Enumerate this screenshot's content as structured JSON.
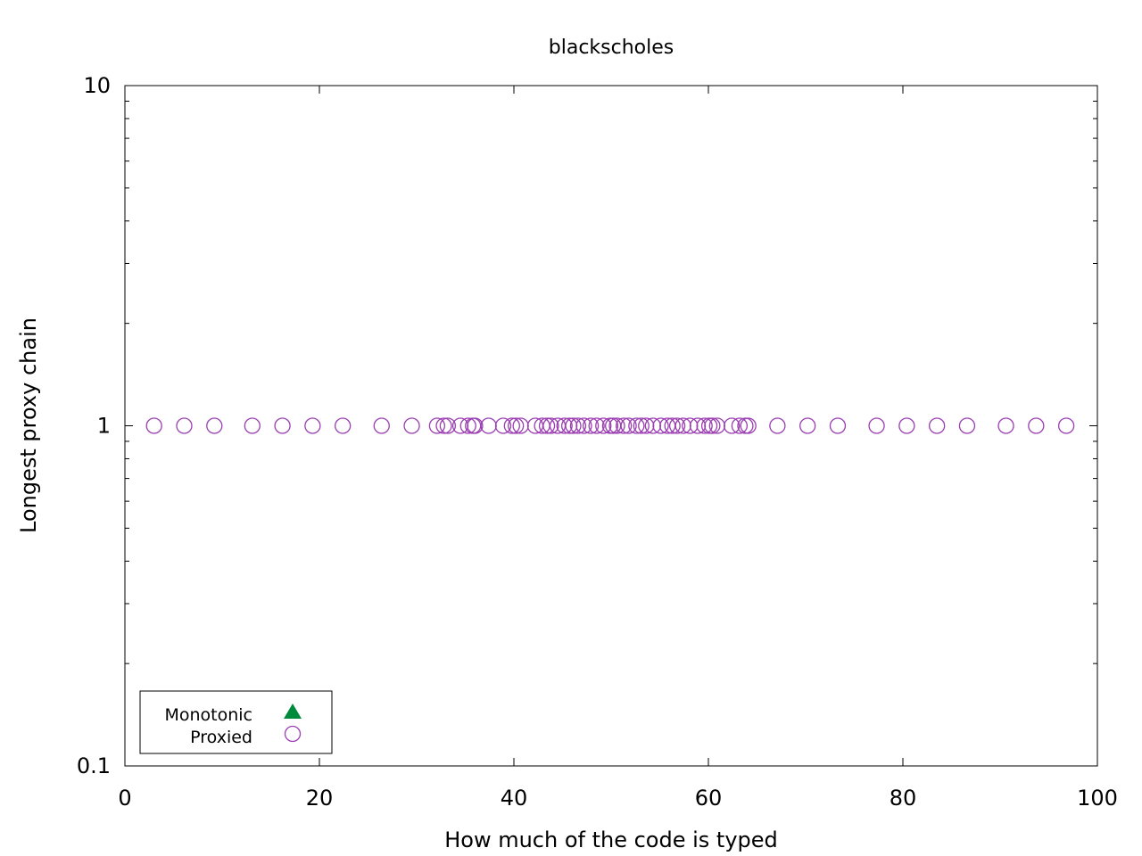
{
  "chart_data": {
    "type": "scatter",
    "title": "blackscholes",
    "xlabel": "How much of the code is typed",
    "ylabel": "Longest proxy chain",
    "xlim": [
      0,
      100
    ],
    "ylim": [
      0.1,
      10
    ],
    "yscale": "log",
    "grid": false,
    "legend_position": "bottom-left",
    "x_ticks": [
      "0",
      "20",
      "40",
      "60",
      "80",
      "100"
    ],
    "y_ticks": [
      "0.1",
      "1",
      "10"
    ],
    "legend": [
      {
        "label": "Monotonic",
        "marker": "filled-triangle",
        "color": "#008a3c"
      },
      {
        "label": "Proxied",
        "marker": "open-circle",
        "color": "#9b3fb2"
      }
    ],
    "series": [
      {
        "name": "Monotonic",
        "marker": "filled-triangle",
        "color": "#008a3c",
        "points": []
      },
      {
        "name": "Proxied",
        "marker": "open-circle",
        "color": "#9b3fb2",
        "points": [
          [
            3.0,
            1
          ],
          [
            6.1,
            1
          ],
          [
            9.2,
            1
          ],
          [
            13.1,
            1
          ],
          [
            16.2,
            1
          ],
          [
            19.3,
            1
          ],
          [
            22.4,
            1
          ],
          [
            26.4,
            1
          ],
          [
            29.5,
            1
          ],
          [
            32.1,
            1
          ],
          [
            32.8,
            1
          ],
          [
            33.2,
            1
          ],
          [
            34.5,
            1
          ],
          [
            35.3,
            1
          ],
          [
            35.8,
            1
          ],
          [
            36.0,
            1
          ],
          [
            37.4,
            1
          ],
          [
            38.9,
            1
          ],
          [
            39.8,
            1
          ],
          [
            40.2,
            1
          ],
          [
            40.7,
            1
          ],
          [
            42.2,
            1
          ],
          [
            42.9,
            1
          ],
          [
            43.4,
            1
          ],
          [
            43.8,
            1
          ],
          [
            44.5,
            1
          ],
          [
            45.2,
            1
          ],
          [
            45.7,
            1
          ],
          [
            46.1,
            1
          ],
          [
            46.6,
            1
          ],
          [
            47.2,
            1
          ],
          [
            47.9,
            1
          ],
          [
            48.5,
            1
          ],
          [
            49.2,
            1
          ],
          [
            49.9,
            1
          ],
          [
            50.2,
            1
          ],
          [
            50.6,
            1
          ],
          [
            51.3,
            1
          ],
          [
            51.8,
            1
          ],
          [
            52.6,
            1
          ],
          [
            53.1,
            1
          ],
          [
            53.6,
            1
          ],
          [
            54.3,
            1
          ],
          [
            55.1,
            1
          ],
          [
            55.8,
            1
          ],
          [
            56.3,
            1
          ],
          [
            56.8,
            1
          ],
          [
            57.4,
            1
          ],
          [
            58.1,
            1
          ],
          [
            58.9,
            1
          ],
          [
            59.6,
            1
          ],
          [
            60.1,
            1
          ],
          [
            60.4,
            1
          ],
          [
            60.9,
            1
          ],
          [
            62.4,
            1
          ],
          [
            63.2,
            1
          ],
          [
            63.8,
            1
          ],
          [
            64.1,
            1
          ],
          [
            67.1,
            1
          ],
          [
            70.2,
            1
          ],
          [
            73.3,
            1
          ],
          [
            77.3,
            1
          ],
          [
            80.4,
            1
          ],
          [
            83.5,
            1
          ],
          [
            86.6,
            1
          ],
          [
            90.6,
            1
          ],
          [
            93.7,
            1
          ],
          [
            96.8,
            1
          ]
        ]
      }
    ]
  }
}
